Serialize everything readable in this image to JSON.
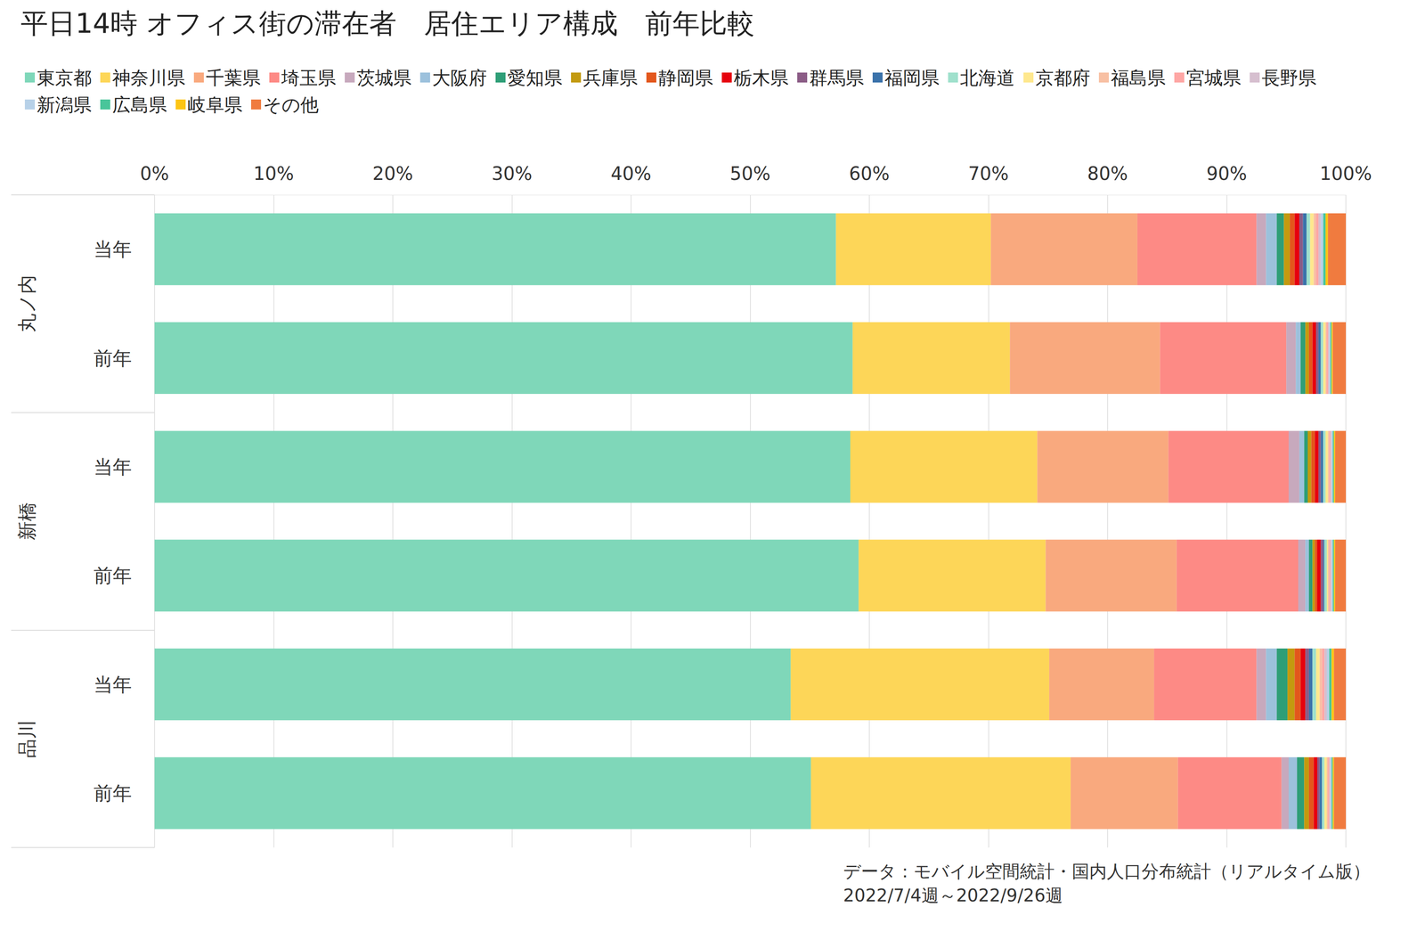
{
  "chart_data": {
    "type": "bar",
    "title": "平日14時 オフィス街の滞在者　居住エリア構成　前年比較",
    "orientation": "horizontal",
    "stacked": true,
    "grid": true,
    "legend": "top",
    "groups": [
      "丸ノ内",
      "新橋",
      "品川"
    ],
    "categories": [
      "当年",
      "前年",
      "当年",
      "前年",
      "当年",
      "前年"
    ],
    "xlim": [
      0,
      100
    ],
    "xticks": [
      {
        "value": 0,
        "label": "0%"
      },
      {
        "value": 10,
        "label": "10%"
      },
      {
        "value": 20,
        "label": "20%"
      },
      {
        "value": 30,
        "label": "30%"
      },
      {
        "value": 40,
        "label": "40%"
      },
      {
        "value": 50,
        "label": "50%"
      },
      {
        "value": 60,
        "label": "60%"
      },
      {
        "value": 70,
        "label": "70%"
      },
      {
        "value": 80,
        "label": "80%"
      },
      {
        "value": 90,
        "label": "90%"
      },
      {
        "value": 100,
        "label": "100%"
      }
    ],
    "annotations": [
      "データ：モバイル空間統計・国内人口分布統計（リアルタイム版）",
      "2022/7/4週～2022/9/26週"
    ],
    "series": [
      {
        "name": "東京都",
        "color": "#7fd7b9",
        "values": [
          57.2,
          58.6,
          58.4,
          59.1,
          53.4,
          55.1
        ]
      },
      {
        "name": "神奈川県",
        "color": "#fdd658",
        "values": [
          13.0,
          13.2,
          15.7,
          15.7,
          21.7,
          21.8
        ]
      },
      {
        "name": "千葉県",
        "color": "#f9a97e",
        "values": [
          12.3,
          12.6,
          11.0,
          11.0,
          8.8,
          9.0
        ]
      },
      {
        "name": "埼玉県",
        "color": "#fd8a85",
        "values": [
          10.0,
          10.6,
          10.1,
          10.2,
          8.6,
          8.7
        ]
      },
      {
        "name": "茨城県",
        "color": "#c7a9bd",
        "values": [
          0.8,
          0.8,
          0.9,
          0.6,
          0.8,
          0.6
        ]
      },
      {
        "name": "大阪府",
        "color": "#9cc1dc",
        "values": [
          0.9,
          0.4,
          0.4,
          0.3,
          0.9,
          0.7
        ]
      },
      {
        "name": "愛知県",
        "color": "#2e9e77",
        "values": [
          0.6,
          0.4,
          0.3,
          0.3,
          0.9,
          0.6
        ]
      },
      {
        "name": "兵庫県",
        "color": "#c39a0f",
        "values": [
          0.5,
          0.3,
          0.3,
          0.2,
          0.6,
          0.4
        ]
      },
      {
        "name": "静岡県",
        "color": "#e3571c",
        "values": [
          0.4,
          0.3,
          0.3,
          0.2,
          0.5,
          0.4
        ]
      },
      {
        "name": "栃木県",
        "color": "#e6000d",
        "values": [
          0.4,
          0.3,
          0.3,
          0.3,
          0.4,
          0.3
        ]
      },
      {
        "name": "群馬県",
        "color": "#8b5c86",
        "values": [
          0.3,
          0.2,
          0.2,
          0.2,
          0.3,
          0.2
        ]
      },
      {
        "name": "福岡県",
        "color": "#3a72aa",
        "values": [
          0.3,
          0.2,
          0.2,
          0.1,
          0.3,
          0.2
        ]
      },
      {
        "name": "北海道",
        "color": "#9fe0cc",
        "values": [
          0.3,
          0.2,
          0.2,
          0.2,
          0.3,
          0.2
        ]
      },
      {
        "name": "京都府",
        "color": "#fee88e",
        "values": [
          0.3,
          0.2,
          0.2,
          0.1,
          0.3,
          0.2
        ]
      },
      {
        "name": "福島県",
        "color": "#f8c0a3",
        "values": [
          0.2,
          0.1,
          0.1,
          0.1,
          0.2,
          0.1
        ]
      },
      {
        "name": "宮城県",
        "color": "#fea6a4",
        "values": [
          0.2,
          0.1,
          0.1,
          0.1,
          0.2,
          0.1
        ]
      },
      {
        "name": "長野県",
        "color": "#d6bfcf",
        "values": [
          0.2,
          0.1,
          0.1,
          0.1,
          0.2,
          0.1
        ]
      },
      {
        "name": "新潟県",
        "color": "#b7d1e8",
        "values": [
          0.2,
          0.1,
          0.1,
          0.1,
          0.2,
          0.1
        ]
      },
      {
        "name": "広島県",
        "color": "#49c59a",
        "values": [
          0.2,
          0.1,
          0.1,
          0.1,
          0.2,
          0.1
        ]
      },
      {
        "name": "岐阜県",
        "color": "#fdc514",
        "values": [
          0.2,
          0.1,
          0.1,
          0.1,
          0.2,
          0.1
        ]
      },
      {
        "name": "その他",
        "color": "#f07b3f",
        "values": [
          1.5,
          1.1,
          0.9,
          0.9,
          1.0,
          1.0
        ]
      }
    ]
  }
}
